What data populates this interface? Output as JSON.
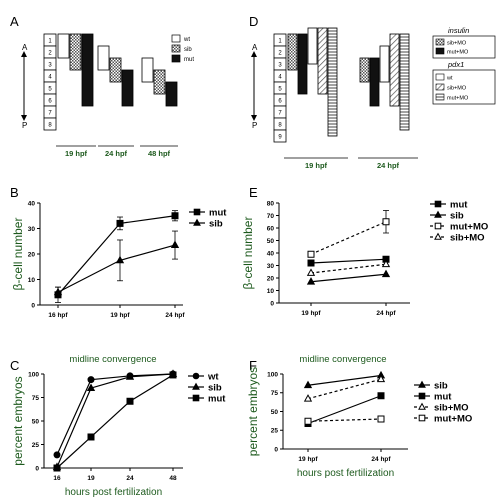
{
  "panels": {
    "A": {
      "letter": "A",
      "axis": {
        "top": "A",
        "bottom": "P"
      },
      "segments": [
        "1",
        "2",
        "3",
        "4",
        "5",
        "6",
        "7",
        "8"
      ],
      "times": [
        "19 hpf",
        "24 hpf",
        "48 hpf"
      ],
      "legend": [
        {
          "label": "wt",
          "pattern": "white"
        },
        {
          "label": "sib",
          "pattern": "checker"
        },
        {
          "label": "mut",
          "pattern": "black"
        }
      ],
      "bars": [
        {
          "time": "19 hpf",
          "genotype": "wt",
          "from": 1,
          "to": 3
        },
        {
          "time": "19 hpf",
          "genotype": "sib",
          "from": 1,
          "to": 4
        },
        {
          "time": "19 hpf",
          "genotype": "mut",
          "from": 1,
          "to": 7
        },
        {
          "time": "24 hpf",
          "genotype": "wt",
          "from": 2,
          "to": 4
        },
        {
          "time": "24 hpf",
          "genotype": "sib",
          "from": 3,
          "to": 5
        },
        {
          "time": "24 hpf",
          "genotype": "mut",
          "from": 4,
          "to": 7
        },
        {
          "time": "48 hpf",
          "genotype": "wt",
          "from": 3,
          "to": 5
        },
        {
          "time": "48 hpf",
          "genotype": "sib",
          "from": 4,
          "to": 6
        },
        {
          "time": "48 hpf",
          "genotype": "mut",
          "from": 5,
          "to": 7
        }
      ]
    },
    "D": {
      "letter": "D",
      "axis": {
        "top": "A",
        "bottom": "P"
      },
      "segments": [
        "1",
        "2",
        "3",
        "4",
        "5",
        "6",
        "7",
        "8",
        "9"
      ],
      "times": [
        "19 hpf",
        "24 hpf"
      ],
      "legend_insulin": {
        "title": "insulin",
        "items": [
          {
            "label": "sib+MO",
            "pattern": "checker"
          },
          {
            "label": "mut+MO",
            "pattern": "black"
          }
        ]
      },
      "legend_pdx1": {
        "title": "pdx1",
        "items": [
          {
            "label": "wt",
            "pattern": "white"
          },
          {
            "label": "sib+MO",
            "pattern": "diag"
          },
          {
            "label": "mut+MO",
            "pattern": "horiz"
          }
        ]
      },
      "bars": [
        {
          "time": "19 hpf",
          "genotype": "sib+MO",
          "marker": "insulin",
          "from": 1,
          "to": 4
        },
        {
          "time": "19 hpf",
          "genotype": "mut+MO",
          "marker": "insulin",
          "from": 1,
          "to": 6
        },
        {
          "time": "19 hpf",
          "genotype": "wt",
          "marker": "pdx1",
          "from": 0.5,
          "to": 3.5
        },
        {
          "time": "19 hpf",
          "genotype": "sib+MO",
          "marker": "pdx1",
          "from": 0.5,
          "to": 6
        },
        {
          "time": "19 hpf",
          "genotype": "mut+MO",
          "marker": "pdx1",
          "from": 0.5,
          "to": 9.5
        },
        {
          "time": "24 hpf",
          "genotype": "sib+MO",
          "marker": "insulin",
          "from": 3,
          "to": 5
        },
        {
          "time": "24 hpf",
          "genotype": "mut+MO",
          "marker": "insulin",
          "from": 3,
          "to": 7
        },
        {
          "time": "24 hpf",
          "genotype": "wt",
          "marker": "pdx1",
          "from": 2,
          "to": 5
        },
        {
          "time": "24 hpf",
          "genotype": "sib+MO",
          "marker": "pdx1",
          "from": 1,
          "to": 7
        },
        {
          "time": "24 hpf",
          "genotype": "mut+MO",
          "marker": "pdx1",
          "from": 1,
          "to": 9
        }
      ]
    },
    "B": {
      "letter": "B"
    },
    "C": {
      "letter": "C"
    },
    "E": {
      "letter": "E"
    },
    "F": {
      "letter": "F"
    }
  },
  "chart_data": [
    {
      "id": "B",
      "type": "line",
      "title": "",
      "ylabel": "β-cell number",
      "xlabel": "",
      "categories": [
        "16 hpf",
        "19 hpf",
        "24 hpf"
      ],
      "ylim": [
        0,
        40
      ],
      "yticks": [
        0,
        10,
        20,
        30,
        40
      ],
      "legend_position": "top-right",
      "series": [
        {
          "name": "mut",
          "marker": "square-filled",
          "dashed": false,
          "values": [
            4,
            32,
            35
          ],
          "err": [
            3,
            2.5,
            2
          ]
        },
        {
          "name": "sib",
          "marker": "triangle-filled",
          "dashed": false,
          "values": [
            5,
            17.5,
            23.5
          ],
          "err": [
            2,
            8,
            5.5
          ]
        }
      ]
    },
    {
      "id": "C",
      "type": "line",
      "title": "midline convergence",
      "ylabel": "percent embryos",
      "xlabel": "hours post fertilization",
      "x": [
        16,
        19,
        24,
        48
      ],
      "xtick_labels": [
        "16",
        "19",
        "24",
        "48"
      ],
      "ylim": [
        0,
        100
      ],
      "yticks": [
        0,
        25,
        50,
        75,
        100
      ],
      "legend_position": "top-right",
      "series": [
        {
          "name": "wt",
          "marker": "circle-filled",
          "dashed": false,
          "values": [
            14,
            94,
            98,
            100
          ]
        },
        {
          "name": "sib",
          "marker": "triangle-filled",
          "dashed": false,
          "values": [
            1,
            85,
            97,
            100
          ]
        },
        {
          "name": "mut",
          "marker": "square-filled",
          "dashed": false,
          "values": [
            0,
            33,
            71,
            99
          ]
        }
      ]
    },
    {
      "id": "E",
      "type": "line",
      "title": "",
      "ylabel": "β-cell number",
      "xlabel": "",
      "categories": [
        "19 hpf",
        "24 hpf"
      ],
      "ylim": [
        0,
        80
      ],
      "yticks": [
        0,
        10,
        20,
        30,
        40,
        50,
        60,
        70,
        80
      ],
      "legend_position": "top-right",
      "series": [
        {
          "name": "mut",
          "marker": "square-filled",
          "dashed": false,
          "values": [
            32,
            35
          ]
        },
        {
          "name": "sib",
          "marker": "triangle-filled",
          "dashed": false,
          "values": [
            17,
            23
          ]
        },
        {
          "name": "mut+MO",
          "marker": "square-open",
          "dashed": true,
          "values": [
            39,
            65
          ],
          "err": [
            0,
            9
          ]
        },
        {
          "name": "sib+MO",
          "marker": "triangle-open",
          "dashed": true,
          "values": [
            24,
            31
          ]
        }
      ]
    },
    {
      "id": "F",
      "type": "line",
      "title": "midline convergence",
      "ylabel": "percent embryos",
      "xlabel": "hours post fertilization",
      "categories": [
        "19 hpf",
        "24 hpf"
      ],
      "ylim": [
        0,
        100
      ],
      "yticks": [
        0,
        25,
        50,
        75,
        100
      ],
      "legend_position": "top-right",
      "series": [
        {
          "name": "sib",
          "marker": "triangle-filled",
          "dashed": false,
          "values": [
            85,
            98
          ]
        },
        {
          "name": "mut",
          "marker": "square-filled",
          "dashed": false,
          "values": [
            34,
            71
          ]
        },
        {
          "name": "sib+MO",
          "marker": "triangle-open",
          "dashed": true,
          "values": [
            67,
            93
          ]
        },
        {
          "name": "mut+MO",
          "marker": "square-open",
          "dashed": true,
          "values": [
            37,
            40
          ]
        }
      ]
    }
  ]
}
